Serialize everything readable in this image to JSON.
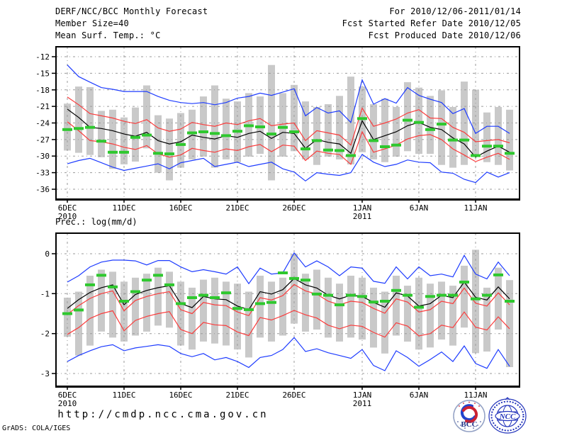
{
  "header": {
    "title": "DERF/NCC/BCC Monthly Forecast",
    "member_size": "Member Size=40",
    "for_range": "For 2010/12/06-2011/01/14",
    "refer_date": "Fcst Started Refer Date 2010/12/05",
    "produced_date": "Fcst Produced Date 2010/12/06"
  },
  "footer": {
    "url": "http://cmdp.ncc.cma.gov.cn",
    "grads_credit": "GrADS: COLA/IGES",
    "logos": [
      {
        "label": "BCC"
      },
      {
        "label": "NCC"
      }
    ]
  },
  "colors": {
    "blue": "#1e3cff",
    "red": "#fa3c3c",
    "green": "#2ec82e",
    "black": "#000000",
    "bar": "#c9c9c9",
    "grid": "#9a9a9a",
    "frame": "#000000",
    "background": "#ffffff"
  },
  "chart_data": [
    {
      "id": "temperature-chart",
      "type": "line",
      "title": "Mean Surf. Temp.: °C",
      "ylabel": "°C",
      "grid": true,
      "n_days": 40,
      "ylim": [
        -37.8,
        -10.2
      ],
      "yticks": [
        -12,
        -15,
        -18,
        -21,
        -24,
        -27,
        -30,
        -33,
        -36
      ],
      "xticks": [
        {
          "day": 0,
          "label": "6DEC",
          "year": "2010"
        },
        {
          "day": 5,
          "label": "11DEC"
        },
        {
          "day": 10,
          "label": "16DEC"
        },
        {
          "day": 15,
          "label": "21DEC"
        },
        {
          "day": 20,
          "label": "26DEC"
        },
        {
          "day": 26,
          "label": "1JAN",
          "year": "2011"
        },
        {
          "day": 31,
          "label": "6JAN"
        },
        {
          "day": 36,
          "label": "11JAN"
        }
      ],
      "series": [
        {
          "id": "ensemble-max",
          "name": "ensemble max",
          "color_key": "blue",
          "style": "line",
          "values": [
            -13.5,
            -15.6,
            -16.6,
            -17.6,
            -17.9,
            -18.3,
            -18.3,
            -18.3,
            -19.2,
            -19.9,
            -20.3,
            -20.5,
            -20.3,
            -20.7,
            -20.3,
            -19.5,
            -19.2,
            -18.6,
            -19.0,
            -18.4,
            -17.8,
            -22.7,
            -21.2,
            -22.2,
            -21.8,
            -23.9,
            -16.2,
            -20.6,
            -19.6,
            -20.4,
            -17.6,
            -19.0,
            -19.7,
            -20.3,
            -22.3,
            -21.4,
            -25.9,
            -24.6,
            -24.6,
            -25.9
          ]
        },
        {
          "id": "upper-spread",
          "name": "upper spread",
          "color_key": "red",
          "style": "line",
          "values": [
            -19.3,
            -20.7,
            -22.3,
            -22.7,
            -23.1,
            -23.7,
            -24.1,
            -23.4,
            -24.9,
            -25.5,
            -25.1,
            -23.9,
            -24.3,
            -24.6,
            -24.0,
            -24.3,
            -23.6,
            -23.2,
            -24.5,
            -24.2,
            -24.0,
            -27.2,
            -25.4,
            -25.8,
            -26.2,
            -28.0,
            -21.3,
            -24.6,
            -24.0,
            -23.3,
            -22.2,
            -21.6,
            -23.1,
            -23.2,
            -24.8,
            -25.7,
            -27.4,
            -27.2,
            -27.0,
            -27.6
          ]
        },
        {
          "id": "ensemble-mean",
          "name": "ensemble mean",
          "color_key": "black",
          "style": "line",
          "values": [
            -21.5,
            -23.0,
            -24.8,
            -25.0,
            -25.4,
            -26.0,
            -26.4,
            -25.7,
            -27.2,
            -27.8,
            -27.4,
            -26.2,
            -26.6,
            -26.9,
            -26.3,
            -26.6,
            -25.9,
            -25.5,
            -26.8,
            -25.7,
            -25.9,
            -28.6,
            -27.0,
            -27.5,
            -27.8,
            -29.5,
            -23.6,
            -27.0,
            -26.3,
            -25.6,
            -24.5,
            -23.9,
            -24.8,
            -25.2,
            -26.7,
            -27.8,
            -30.2,
            -29.1,
            -28.2,
            -29.3
          ]
        },
        {
          "id": "lower-spread",
          "name": "lower spread",
          "color_key": "red",
          "style": "line",
          "values": [
            -23.8,
            -25.4,
            -27.2,
            -27.4,
            -27.8,
            -28.4,
            -28.8,
            -28.1,
            -29.6,
            -30.2,
            -29.8,
            -28.6,
            -29.0,
            -29.3,
            -28.7,
            -29.0,
            -28.3,
            -27.9,
            -29.2,
            -28.0,
            -28.2,
            -30.8,
            -29.1,
            -29.5,
            -29.7,
            -31.5,
            -25.6,
            -29.3,
            -28.7,
            -28.0,
            -26.9,
            -26.3,
            -26.1,
            -27.0,
            -28.7,
            -29.8,
            -31.0,
            -30.2,
            -29.5,
            -30.6
          ]
        },
        {
          "id": "ensemble-min",
          "name": "ensemble min",
          "color_key": "blue",
          "style": "line",
          "values": [
            -31.4,
            -30.8,
            -30.4,
            -31.2,
            -32.0,
            -32.6,
            -32.2,
            -31.8,
            -31.4,
            -32.3,
            -31.2,
            -30.8,
            -30.4,
            -31.9,
            -31.5,
            -31.1,
            -31.9,
            -31.5,
            -31.1,
            -32.3,
            -32.9,
            -34.5,
            -33.0,
            -33.3,
            -33.5,
            -33.0,
            -29.7,
            -31.1,
            -31.9,
            -31.5,
            -30.7,
            -31.1,
            -31.2,
            -32.9,
            -33.1,
            -34.2,
            -34.8,
            -32.9,
            -33.8,
            -33.0
          ]
        },
        {
          "id": "observation",
          "name": "observation",
          "color_key": "green",
          "style": "dashes",
          "values": [
            -25.2,
            -25.0,
            -24.8,
            -27.3,
            -29.3,
            -29.3,
            -26.6,
            -26.2,
            -29.5,
            -29.6,
            -27.9,
            -25.8,
            -25.6,
            -25.9,
            -26.3,
            -25.5,
            -24.5,
            -24.7,
            -26.0,
            -24.8,
            -25.6,
            -28.7,
            -27.2,
            -28.9,
            -29.0,
            -29.9,
            -23.2,
            -27.2,
            -28.3,
            -28.0,
            -23.5,
            -23.9,
            -25.2,
            -24.2,
            -27.1,
            -27.1,
            -29.9,
            -28.2,
            -28.2,
            -29.5
          ]
        }
      ],
      "bars": {
        "name": "member range",
        "hi": [
          -20.5,
          -17.4,
          -17.5,
          -21.8,
          -21.6,
          -23.0,
          -21.2,
          -17.2,
          -22.6,
          -23.2,
          -22.2,
          -21.6,
          -19.2,
          -17.2,
          -19.6,
          -20.1,
          -18.6,
          -19.2,
          -13.5,
          -18.6,
          -17.1,
          -20.1,
          -21.1,
          -20.6,
          -19.1,
          -15.6,
          -17.4,
          -20.6,
          -19.6,
          -21.1,
          -16.6,
          -17.6,
          -19.1,
          -18.1,
          -21.1,
          -16.5,
          -18.0,
          -22.1,
          -21.1,
          -21.6
        ],
        "lo": [
          -29.0,
          -29.4,
          -29.8,
          -30.2,
          -32.3,
          -31.5,
          -31.0,
          -28.6,
          -33.0,
          -34.4,
          -32.1,
          -30.6,
          -30.1,
          -32.1,
          -30.6,
          -31.1,
          -30.1,
          -29.6,
          -34.4,
          -30.1,
          -29.1,
          -30.6,
          -31.6,
          -30.1,
          -30.6,
          -31.5,
          -29.3,
          -30.6,
          -31.1,
          -30.1,
          -29.1,
          -29.6,
          -29.6,
          -31.6,
          -32.1,
          -31.6,
          -30.0,
          -31.1,
          -31.6,
          -32.6
        ]
      }
    },
    {
      "id": "precipitation-chart",
      "type": "line",
      "title": "Prec.: log(mm/d)",
      "ylabel": "log(mm/d)",
      "grid": true,
      "n_days": 40,
      "ylim": [
        -3.32,
        0.515
      ],
      "yticks": [
        0,
        -1,
        -2,
        -3
      ],
      "xticks": [
        {
          "day": 0,
          "label": "6DEC",
          "year": "2010"
        },
        {
          "day": 5,
          "label": "11DEC"
        },
        {
          "day": 10,
          "label": "16DEC"
        },
        {
          "day": 15,
          "label": "21DEC"
        },
        {
          "day": 20,
          "label": "26DEC"
        },
        {
          "day": 26,
          "label": "1JAN",
          "year": "2011"
        },
        {
          "day": 31,
          "label": "6JAN"
        },
        {
          "day": 36,
          "label": "11JAN"
        }
      ],
      "series": [
        {
          "id": "ensemble-max",
          "name": "ensemble max",
          "color_key": "blue",
          "style": "line",
          "values": [
            -0.71,
            -0.55,
            -0.33,
            -0.21,
            -0.16,
            -0.16,
            -0.18,
            -0.28,
            -0.17,
            -0.17,
            -0.33,
            -0.45,
            -0.4,
            -0.45,
            -0.51,
            -0.33,
            -0.75,
            -0.36,
            -0.51,
            -0.48,
            0.02,
            -0.33,
            -0.18,
            -0.33,
            -0.55,
            -0.33,
            -0.36,
            -0.69,
            -0.74,
            -0.33,
            -0.63,
            -0.33,
            -0.55,
            -0.51,
            -0.58,
            -0.04,
            -0.51,
            -0.63,
            -0.21,
            -0.55
          ]
        },
        {
          "id": "upper-spread",
          "name": "upper spread",
          "color_key": "red",
          "style": "line",
          "values": [
            -1.52,
            -1.3,
            -1.12,
            -1.0,
            -0.93,
            -1.43,
            -1.17,
            -1.07,
            -1.0,
            -0.95,
            -1.4,
            -1.5,
            -1.22,
            -1.28,
            -1.3,
            -1.46,
            -1.55,
            -1.1,
            -1.16,
            -1.05,
            -0.77,
            -0.93,
            -1.01,
            -1.19,
            -1.28,
            -1.19,
            -1.22,
            -1.37,
            -1.49,
            -1.13,
            -1.21,
            -1.46,
            -1.4,
            -1.19,
            -1.25,
            -0.86,
            -1.24,
            -1.31,
            -0.98,
            -1.28
          ]
        },
        {
          "id": "ensemble-mean",
          "name": "ensemble mean",
          "color_key": "black",
          "style": "line",
          "values": [
            -1.37,
            -1.15,
            -0.97,
            -0.85,
            -0.78,
            -1.28,
            -1.02,
            -0.92,
            -0.85,
            -0.8,
            -1.25,
            -1.35,
            -1.07,
            -1.13,
            -1.15,
            -1.31,
            -1.4,
            -0.95,
            -1.01,
            -0.9,
            -0.62,
            -0.78,
            -0.86,
            -1.04,
            -1.13,
            -1.04,
            -1.07,
            -1.22,
            -1.34,
            -0.98,
            -1.06,
            -1.31,
            -1.25,
            -1.04,
            -1.1,
            -0.71,
            -1.09,
            -1.16,
            -0.83,
            -1.13
          ]
        },
        {
          "id": "lower-spread",
          "name": "lower spread",
          "color_key": "red",
          "style": "line",
          "values": [
            -2.02,
            -1.85,
            -1.62,
            -1.5,
            -1.43,
            -1.93,
            -1.67,
            -1.57,
            -1.5,
            -1.45,
            -1.9,
            -2.0,
            -1.72,
            -1.78,
            -1.8,
            -1.96,
            -2.05,
            -1.6,
            -1.66,
            -1.55,
            -1.42,
            -1.53,
            -1.61,
            -1.79,
            -1.88,
            -1.79,
            -1.82,
            -1.97,
            -2.09,
            -1.73,
            -1.81,
            -2.06,
            -2.0,
            -1.79,
            -1.85,
            -1.46,
            -1.84,
            -1.91,
            -1.58,
            -1.88
          ]
        },
        {
          "id": "ensemble-min",
          "name": "ensemble min",
          "color_key": "blue",
          "style": "line",
          "values": [
            -2.7,
            -2.55,
            -2.43,
            -2.33,
            -2.28,
            -2.43,
            -2.36,
            -2.32,
            -2.28,
            -2.32,
            -2.5,
            -2.58,
            -2.5,
            -2.66,
            -2.6,
            -2.7,
            -2.85,
            -2.6,
            -2.55,
            -2.4,
            -2.1,
            -2.45,
            -2.38,
            -2.48,
            -2.55,
            -2.62,
            -2.4,
            -2.8,
            -2.93,
            -2.43,
            -2.6,
            -2.82,
            -2.65,
            -2.46,
            -2.7,
            -2.31,
            -2.75,
            -2.87,
            -2.4,
            -2.82
          ]
        },
        {
          "id": "observation",
          "name": "observation",
          "color_key": "green",
          "style": "dashes",
          "values": [
            -1.5,
            -1.41,
            -0.78,
            -0.54,
            -0.83,
            -1.19,
            -0.95,
            -0.66,
            -0.54,
            -0.78,
            -1.25,
            -1.1,
            -1.04,
            -1.1,
            -0.98,
            -1.37,
            -1.4,
            -1.25,
            -1.22,
            -0.48,
            -0.62,
            -0.66,
            -1.01,
            -1.04,
            -1.28,
            -1.04,
            -1.07,
            -1.21,
            -1.19,
            -0.92,
            -1.04,
            -1.34,
            -1.07,
            -1.04,
            -1.04,
            -0.71,
            -1.13,
            -1.04,
            -0.53,
            -1.19
          ]
        }
      ],
      "bars": {
        "name": "member range",
        "hi": [
          -1.1,
          -0.95,
          -0.55,
          -0.4,
          -0.45,
          -0.7,
          -0.6,
          -0.5,
          -0.35,
          -0.45,
          -0.7,
          -0.85,
          -0.65,
          -0.6,
          -0.7,
          -0.75,
          -0.95,
          -0.55,
          -0.7,
          -0.6,
          0.0,
          -0.5,
          -0.4,
          -0.6,
          -0.75,
          -0.55,
          -0.6,
          -0.85,
          -0.95,
          -0.55,
          -0.8,
          -0.6,
          -0.75,
          -0.7,
          -0.8,
          -0.3,
          0.1,
          -0.85,
          -0.35,
          -0.66
        ],
        "lo": [
          -2.08,
          -2.55,
          -2.3,
          -1.95,
          -2.1,
          -2.2,
          -2.05,
          -1.95,
          -1.8,
          -1.85,
          -2.3,
          -2.4,
          -2.2,
          -2.25,
          -2.3,
          -2.4,
          -2.6,
          -2.1,
          -2.2,
          -2.05,
          -1.75,
          -1.95,
          -1.9,
          -2.1,
          -2.2,
          -2.1,
          -2.15,
          -2.35,
          -2.5,
          -2.05,
          -2.2,
          -2.4,
          -2.35,
          -2.15,
          -2.3,
          -1.85,
          -2.49,
          -2.45,
          -1.9,
          -2.84
        ]
      }
    }
  ]
}
